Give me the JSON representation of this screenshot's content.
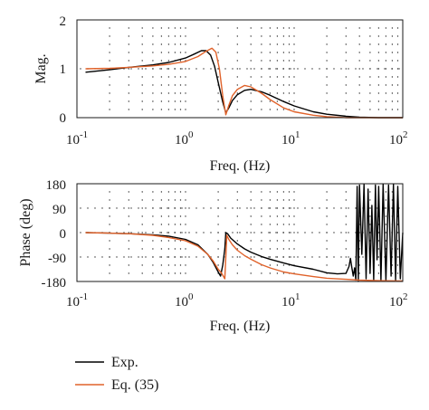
{
  "chart_data": [
    {
      "type": "line",
      "xscale": "log",
      "xlim": [
        0.1,
        100
      ],
      "ylim": [
        0,
        2
      ],
      "x_ticks": [
        0.1,
        1,
        10,
        100
      ],
      "x_tick_labels": [
        {
          "base": "10",
          "exp": "-1"
        },
        {
          "base": "10",
          "exp": "0"
        },
        {
          "base": "10",
          "exp": "1"
        },
        {
          "base": "10",
          "exp": "2"
        }
      ],
      "y_ticks": [
        0,
        1,
        2
      ],
      "y_tick_labels": [
        "0",
        "1",
        "2"
      ],
      "xlabel": "Freq. (Hz)",
      "ylabel": "Mag.",
      "grid": "dotted",
      "series": [
        {
          "name": "Exp.",
          "color": "#000000",
          "x": [
            0.12,
            0.2,
            0.3,
            0.5,
            0.7,
            1.0,
            1.2,
            1.4,
            1.55,
            1.7,
            1.85,
            2.0,
            2.2,
            2.35,
            2.5,
            2.7,
            3.0,
            3.5,
            4.0,
            5.0,
            6.0,
            8.0,
            10,
            15,
            20,
            30,
            40,
            60,
            100
          ],
          "values": [
            0.93,
            0.98,
            1.03,
            1.08,
            1.13,
            1.22,
            1.3,
            1.37,
            1.37,
            1.28,
            1.05,
            0.72,
            0.32,
            0.1,
            0.2,
            0.35,
            0.47,
            0.56,
            0.58,
            0.53,
            0.46,
            0.33,
            0.24,
            0.12,
            0.07,
            0.03,
            0.01,
            0.0,
            0.0
          ]
        },
        {
          "name": "Eq. (35)",
          "color": "#e0622a",
          "x": [
            0.12,
            0.2,
            0.3,
            0.5,
            0.7,
            1.0,
            1.3,
            1.55,
            1.75,
            1.9,
            2.05,
            2.2,
            2.35,
            2.5,
            2.7,
            3.0,
            3.5,
            4.0,
            5.0,
            6.0,
            8.0,
            10,
            15,
            20,
            30,
            40,
            60,
            100
          ],
          "values": [
            1.0,
            1.01,
            1.03,
            1.06,
            1.09,
            1.15,
            1.25,
            1.36,
            1.42,
            1.34,
            1.0,
            0.45,
            0.06,
            0.25,
            0.45,
            0.58,
            0.66,
            0.63,
            0.5,
            0.37,
            0.2,
            0.12,
            0.05,
            0.02,
            0.0,
            0.0,
            0.0,
            0.0
          ]
        }
      ]
    },
    {
      "type": "line",
      "xscale": "log",
      "xlim": [
        0.1,
        100
      ],
      "ylim": [
        -180,
        180
      ],
      "x_ticks": [
        0.1,
        1,
        10,
        100
      ],
      "x_tick_labels": [
        {
          "base": "10",
          "exp": "-1"
        },
        {
          "base": "10",
          "exp": "0"
        },
        {
          "base": "10",
          "exp": "1"
        },
        {
          "base": "10",
          "exp": "2"
        }
      ],
      "y_ticks": [
        -180,
        -90,
        0,
        90,
        180
      ],
      "y_tick_labels": [
        "-180",
        "-90",
        "0",
        "90",
        "180"
      ],
      "xlabel": "Freq. (Hz)",
      "ylabel": "Phase (deg)",
      "grid": "dotted",
      "series": [
        {
          "name": "Exp.",
          "color": "#000000",
          "x": [
            0.12,
            0.2,
            0.3,
            0.5,
            0.7,
            1.0,
            1.3,
            1.6,
            1.8,
            2.0,
            2.1,
            2.2,
            2.3,
            2.35,
            2.45,
            2.6,
            3.0,
            3.5,
            4,
            5,
            6,
            8,
            10,
            15,
            20,
            25,
            30,
            32,
            33,
            34,
            35,
            36,
            37,
            38,
            39,
            40,
            42,
            44,
            46,
            48,
            50,
            52,
            54,
            56,
            58,
            60,
            63,
            66,
            70,
            74,
            78,
            82,
            86,
            90,
            95,
            100
          ],
          "values": [
            0,
            -2,
            -4,
            -8,
            -13,
            -25,
            -45,
            -80,
            -110,
            -145,
            -160,
            -120,
            -60,
            0,
            -5,
            -20,
            -42,
            -60,
            -72,
            -88,
            -98,
            -112,
            -122,
            -135,
            -148,
            -152,
            -150,
            -125,
            -95,
            -130,
            -160,
            -130,
            -175,
            170,
            -180,
            175,
            -80,
            178,
            -170,
            160,
            -150,
            100,
            -175,
            175,
            -100,
            170,
            -178,
            178,
            -178,
            175,
            -160,
            178,
            -175,
            170,
            -170,
            0
          ]
        },
        {
          "name": "Eq. (35)",
          "color": "#e0622a",
          "x": [
            0.12,
            0.2,
            0.3,
            0.5,
            0.7,
            1.0,
            1.3,
            1.6,
            1.8,
            2.0,
            2.15,
            2.3,
            2.4,
            2.5,
            2.7,
            3.0,
            3.5,
            4,
            5,
            6,
            8,
            10,
            15,
            20,
            30,
            40,
            60,
            100
          ],
          "values": [
            0,
            -2,
            -4,
            -10,
            -18,
            -30,
            -50,
            -80,
            -105,
            -135,
            -150,
            -170,
            -10,
            -25,
            -45,
            -65,
            -85,
            -98,
            -118,
            -130,
            -145,
            -152,
            -162,
            -168,
            -172,
            -175,
            -177,
            -178
          ]
        }
      ]
    }
  ],
  "legend": [
    {
      "label": "Exp.",
      "color": "#000000"
    },
    {
      "label": "Eq. (35)",
      "color": "#e0622a"
    }
  ]
}
